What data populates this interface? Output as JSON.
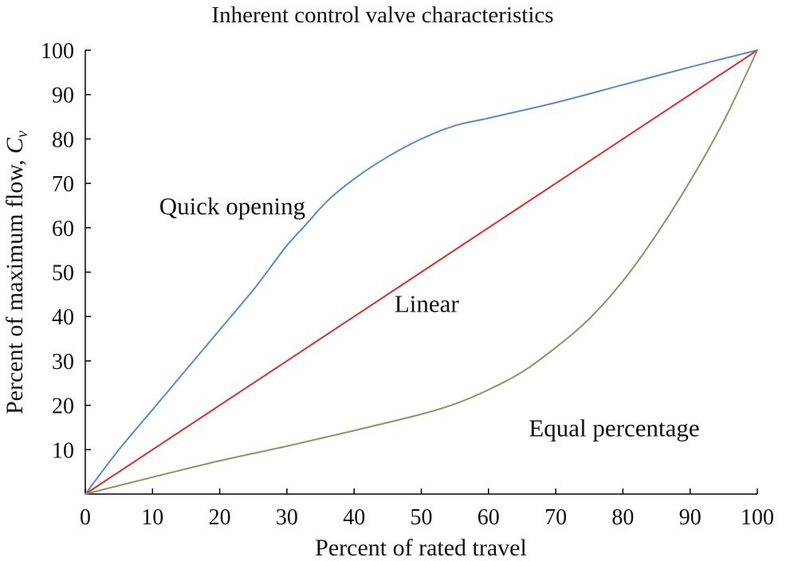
{
  "chart_data": {
    "type": "line",
    "title": "Inherent control valve characteristics",
    "xlabel": "Percent of rated travel",
    "ylabel_main": "Percent of maximum flow, ",
    "ylabel_symbol": "C",
    "ylabel_subscript": "v",
    "xlim": [
      0,
      100
    ],
    "ylim": [
      0,
      100
    ],
    "x_ticks": [
      0,
      10,
      20,
      30,
      40,
      50,
      60,
      70,
      80,
      90,
      100
    ],
    "y_ticks": [
      10,
      20,
      30,
      40,
      50,
      60,
      70,
      80,
      90,
      100
    ],
    "grid": false,
    "series": [
      {
        "name": "Quick opening",
        "color": "#5b8bc7",
        "x": [
          0,
          5,
          10,
          15,
          20,
          25,
          28,
          30,
          33,
          36,
          40,
          45,
          50,
          55,
          60,
          70,
          80,
          90,
          100
        ],
        "y": [
          0,
          10,
          19,
          28,
          37,
          46,
          52,
          56,
          61,
          66,
          71,
          76,
          80,
          83,
          84.7,
          88.2,
          92.2,
          96.2,
          100
        ]
      },
      {
        "name": "Linear",
        "color": "#e32b2b",
        "x": [
          0,
          100
        ],
        "y": [
          0,
          100
        ]
      },
      {
        "name": "Equal percentage",
        "color": "#8c9466",
        "x": [
          0,
          10,
          20,
          30,
          40,
          50,
          55,
          60,
          65,
          70,
          75,
          80,
          85,
          90,
          95,
          100
        ],
        "y": [
          0,
          3.8,
          7.5,
          10.8,
          14.3,
          18,
          20.3,
          23.5,
          27.5,
          33,
          39.5,
          48,
          58.5,
          70.5,
          84,
          100
        ]
      }
    ],
    "annotations": [
      {
        "text": "Quick opening",
        "x": 11,
        "y": 63
      },
      {
        "text": "Linear",
        "x": 46,
        "y": 41
      },
      {
        "text": "Equal percentage",
        "x": 66,
        "y": 13
      }
    ]
  }
}
